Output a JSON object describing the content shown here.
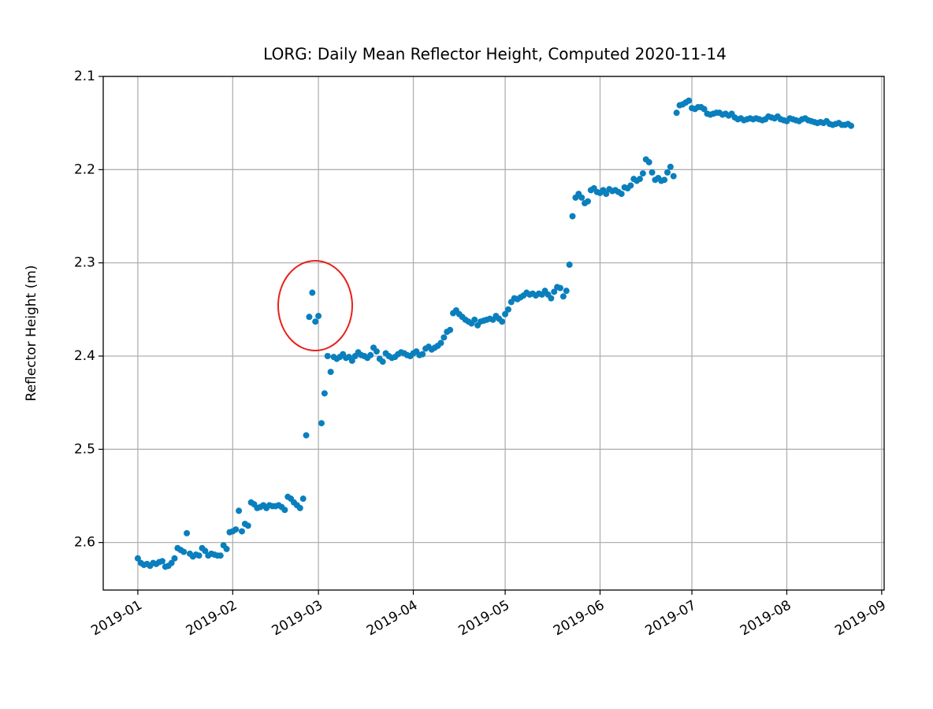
{
  "chart_data": {
    "type": "scatter",
    "title": "LORG: Daily Mean Reflector Height, Computed 2020-11-14",
    "y_label": "Reflector Height (m)",
    "color": "#0a7fbd",
    "grid": true,
    "xlim": [
      -11.3,
      243.8
    ],
    "ylim": [
      2.651,
      2.1
    ],
    "xticks": [
      {
        "value": 0,
        "label": "2019-01"
      },
      {
        "value": 31,
        "label": "2019-02"
      },
      {
        "value": 59,
        "label": "2019-03"
      },
      {
        "value": 90,
        "label": "2019-04"
      },
      {
        "value": 120,
        "label": "2019-05"
      },
      {
        "value": 151,
        "label": "2019-06"
      },
      {
        "value": 181,
        "label": "2019-07"
      },
      {
        "value": 212,
        "label": "2019-08"
      },
      {
        "value": 243,
        "label": "2019-09"
      }
    ],
    "yticks": [
      2.1,
      2.2,
      2.3,
      2.4,
      2.5,
      2.6
    ],
    "x": [
      0,
      1,
      2,
      3,
      4,
      5,
      6,
      7,
      8,
      9,
      10,
      11,
      12,
      13,
      14,
      15,
      16,
      17,
      18,
      19,
      20,
      21,
      22,
      23,
      24,
      25,
      26,
      27,
      28,
      29,
      30,
      31,
      32,
      33,
      34,
      35,
      36,
      37,
      38,
      39,
      40,
      41,
      42,
      43,
      44,
      45,
      46,
      47,
      48,
      49,
      50,
      51,
      52,
      53,
      54,
      55,
      56,
      57,
      58,
      59,
      60,
      61,
      62,
      63,
      64,
      65,
      66,
      67,
      68,
      69,
      70,
      71,
      72,
      73,
      74,
      75,
      76,
      77,
      78,
      79,
      80,
      81,
      82,
      83,
      84,
      85,
      86,
      87,
      88,
      89,
      90,
      91,
      92,
      93,
      94,
      95,
      96,
      97,
      98,
      99,
      100,
      101,
      102,
      103,
      104,
      105,
      106,
      107,
      108,
      109,
      110,
      111,
      112,
      113,
      114,
      115,
      116,
      117,
      118,
      119,
      120,
      121,
      122,
      123,
      124,
      125,
      126,
      127,
      128,
      129,
      130,
      131,
      132,
      133,
      134,
      135,
      136,
      137,
      138,
      139,
      140,
      141,
      142,
      143,
      144,
      145,
      146,
      147,
      148,
      149,
      150,
      151,
      152,
      153,
      154,
      155,
      156,
      157,
      158,
      159,
      160,
      161,
      162,
      163,
      164,
      165,
      166,
      167,
      168,
      169,
      170,
      171,
      172,
      173,
      174,
      175,
      176,
      177,
      178,
      179,
      180,
      181,
      182,
      183,
      184,
      185,
      186,
      187,
      188,
      189,
      190,
      191,
      192,
      193,
      194,
      195,
      196,
      197,
      198,
      199,
      200,
      201,
      202,
      203,
      204,
      205,
      206,
      207,
      208,
      209,
      210,
      211,
      212,
      213,
      214,
      215,
      216,
      217,
      218,
      219,
      220,
      221,
      222,
      223,
      224,
      225,
      226,
      227,
      228,
      229,
      230,
      231,
      232,
      233
    ],
    "values": [
      2.617,
      2.622,
      2.624,
      2.623,
      2.625,
      2.622,
      2.623,
      2.621,
      2.62,
      2.626,
      2.625,
      2.622,
      2.617,
      2.606,
      2.608,
      2.61,
      2.59,
      2.612,
      2.615,
      2.613,
      2.614,
      2.606,
      2.609,
      2.614,
      2.612,
      2.613,
      2.614,
      2.614,
      2.603,
      2.607,
      2.589,
      2.588,
      2.586,
      2.566,
      2.588,
      2.58,
      2.582,
      2.557,
      2.559,
      2.563,
      2.562,
      2.56,
      2.563,
      2.56,
      2.561,
      2.561,
      2.56,
      2.562,
      2.565,
      2.551,
      2.553,
      2.557,
      2.56,
      2.563,
      2.553,
      2.485,
      2.358,
      2.332,
      2.363,
      2.357,
      2.472,
      2.44,
      2.4,
      2.417,
      2.401,
      2.403,
      2.401,
      2.398,
      2.402,
      2.401,
      2.405,
      2.4,
      2.396,
      2.399,
      2.4,
      2.402,
      2.399,
      2.391,
      2.395,
      2.403,
      2.406,
      2.397,
      2.4,
      2.402,
      2.401,
      2.398,
      2.396,
      2.397,
      2.399,
      2.4,
      2.397,
      2.395,
      2.399,
      2.398,
      2.392,
      2.39,
      2.393,
      2.391,
      2.389,
      2.386,
      2.38,
      2.374,
      2.372,
      2.354,
      2.351,
      2.355,
      2.358,
      2.361,
      2.363,
      2.365,
      2.361,
      2.367,
      2.363,
      2.362,
      2.361,
      2.36,
      2.361,
      2.357,
      2.36,
      2.363,
      2.355,
      2.35,
      2.342,
      2.338,
      2.339,
      2.337,
      2.335,
      2.332,
      2.334,
      2.333,
      2.335,
      2.333,
      2.334,
      2.33,
      2.334,
      2.338,
      2.331,
      2.326,
      2.327,
      2.336,
      2.33,
      2.302,
      2.25,
      2.23,
      2.226,
      2.23,
      2.236,
      2.234,
      2.222,
      2.22,
      2.224,
      2.225,
      2.222,
      2.226,
      2.221,
      2.223,
      2.222,
      2.224,
      2.226,
      2.219,
      2.22,
      2.217,
      2.21,
      2.212,
      2.21,
      2.204,
      2.189,
      2.192,
      2.203,
      2.211,
      2.209,
      2.212,
      2.211,
      2.203,
      2.197,
      2.207,
      2.139,
      2.131,
      2.13,
      2.128,
      2.126,
      2.134,
      2.135,
      2.133,
      2.133,
      2.135,
      2.14,
      2.141,
      2.14,
      2.139,
      2.139,
      2.141,
      2.14,
      2.142,
      2.14,
      2.144,
      2.146,
      2.145,
      2.147,
      2.146,
      2.145,
      2.146,
      2.145,
      2.146,
      2.147,
      2.146,
      2.143,
      2.144,
      2.145,
      2.143,
      2.146,
      2.147,
      2.148,
      2.145,
      2.146,
      2.147,
      2.148,
      2.146,
      2.145,
      2.147,
      2.148,
      2.149,
      2.15,
      2.149,
      2.15,
      2.148,
      2.151,
      2.152,
      2.151,
      2.15,
      2.152,
      2.152,
      2.151,
      2.153
    ]
  }
}
